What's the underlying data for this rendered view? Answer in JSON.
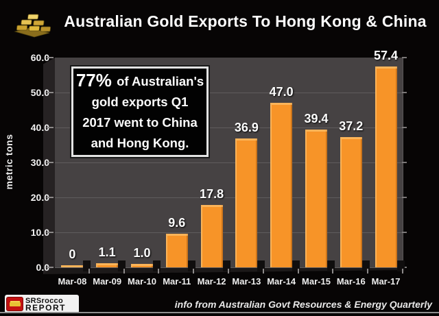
{
  "header": {
    "title": "Australian Gold Exports To Hong Kong & China",
    "icon": "gold-bars-icon"
  },
  "chart_data": {
    "type": "bar",
    "title": "Australian Gold Exports To Hong Kong & China",
    "categories": [
      "Mar-08",
      "Mar-09",
      "Mar-10",
      "Mar-11",
      "Mar-12",
      "Mar-13",
      "Mar-14",
      "Mar-15",
      "Mar-16",
      "Mar-17"
    ],
    "values": [
      0,
      1.1,
      1.0,
      9.6,
      17.8,
      36.9,
      47.0,
      39.4,
      37.2,
      57.4
    ],
    "value_labels": [
      "0",
      "1.1",
      "1.0",
      "9.6",
      "17.8",
      "36.9",
      "47.0",
      "39.4",
      "37.2",
      "57.4"
    ],
    "xlabel": "",
    "ylabel": "metric tons",
    "ylim": [
      0,
      60
    ],
    "ytick_labels": [
      "60.0",
      "50.0",
      "40.0",
      "30.0",
      "20.0",
      "10.0",
      "0.0"
    ],
    "grid": "horizontal",
    "legend": "none",
    "bar_color": "#F79428",
    "plot_background": "#464243",
    "gridline_color": "#605D5E",
    "annotation": {
      "lead": "77%",
      "lines": [
        "of Australian's",
        "gold exports Q1",
        "2017 went to China",
        "and Hong Kong."
      ]
    }
  },
  "footer": {
    "logo_line1": "SRSrocco",
    "logo_line2": "REPORT",
    "credit": "info from Australian Govt Resources & Energy Quarterly"
  }
}
